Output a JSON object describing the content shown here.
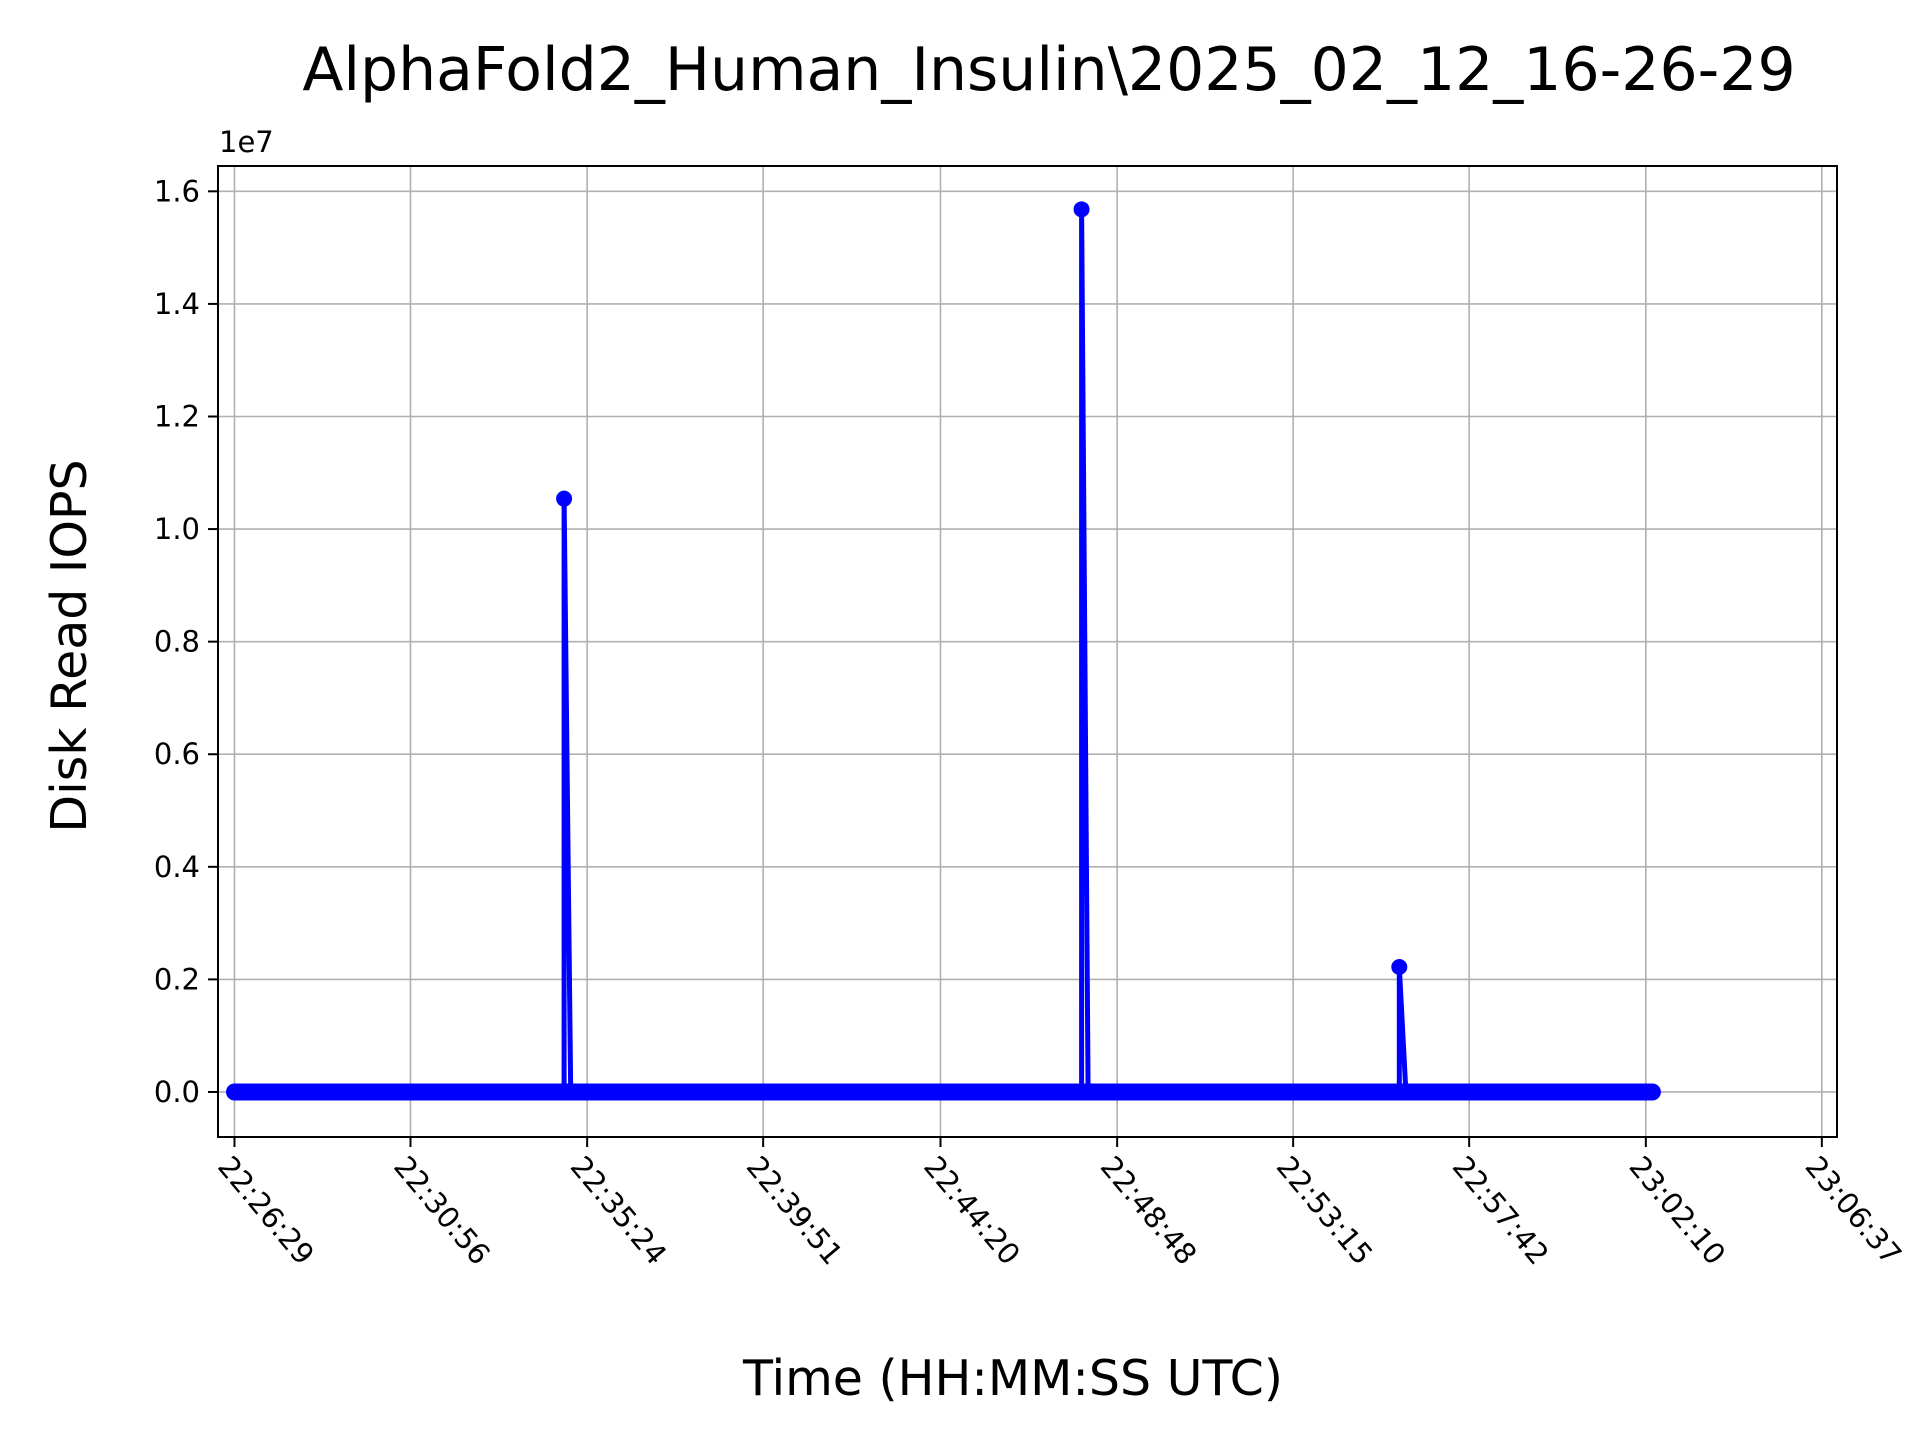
{
  "chart_data": {
    "type": "line",
    "title": "AlphaFold2_Human_Insulin\\2025_02_12_16-26-29",
    "xlabel": "Time (HH:MM:SS UTC)",
    "ylabel": "Disk Read IOPS",
    "y_offset_label": "1e7",
    "y_multiplier": 10000000,
    "grid": true,
    "legend": "none",
    "color": "#0000ff",
    "x_ticks": [
      "22:26:29",
      "22:30:56",
      "22:35:24",
      "22:39:51",
      "22:44:20",
      "22:48:48",
      "22:53:15",
      "22:57:42",
      "23:02:10",
      "23:06:37"
    ],
    "y_ticks": [
      "0.0",
      "0.2",
      "0.4",
      "0.6",
      "0.8",
      "1.0",
      "1.2",
      "1.4",
      "1.6"
    ],
    "xlim": [
      "22:26:04",
      "23:07:00"
    ],
    "ylim": [
      -0.08,
      1.645
    ],
    "series": [
      {
        "x": [
          "22:26:29",
          "22:26:39",
          "22:34:49",
          "22:34:49",
          "22:34:59",
          "22:47:54",
          "22:47:54",
          "22:48:04",
          "22:54:09",
          "22:55:56",
          "22:55:56",
          "22:56:06",
          "23:02:20"
        ],
        "y": [
          0.0,
          0.0,
          0.0,
          1.054,
          0.0,
          0.0,
          1.568,
          0.0,
          0.0,
          0.0,
          0.222,
          0.0,
          0.0
        ]
      }
    ]
  }
}
